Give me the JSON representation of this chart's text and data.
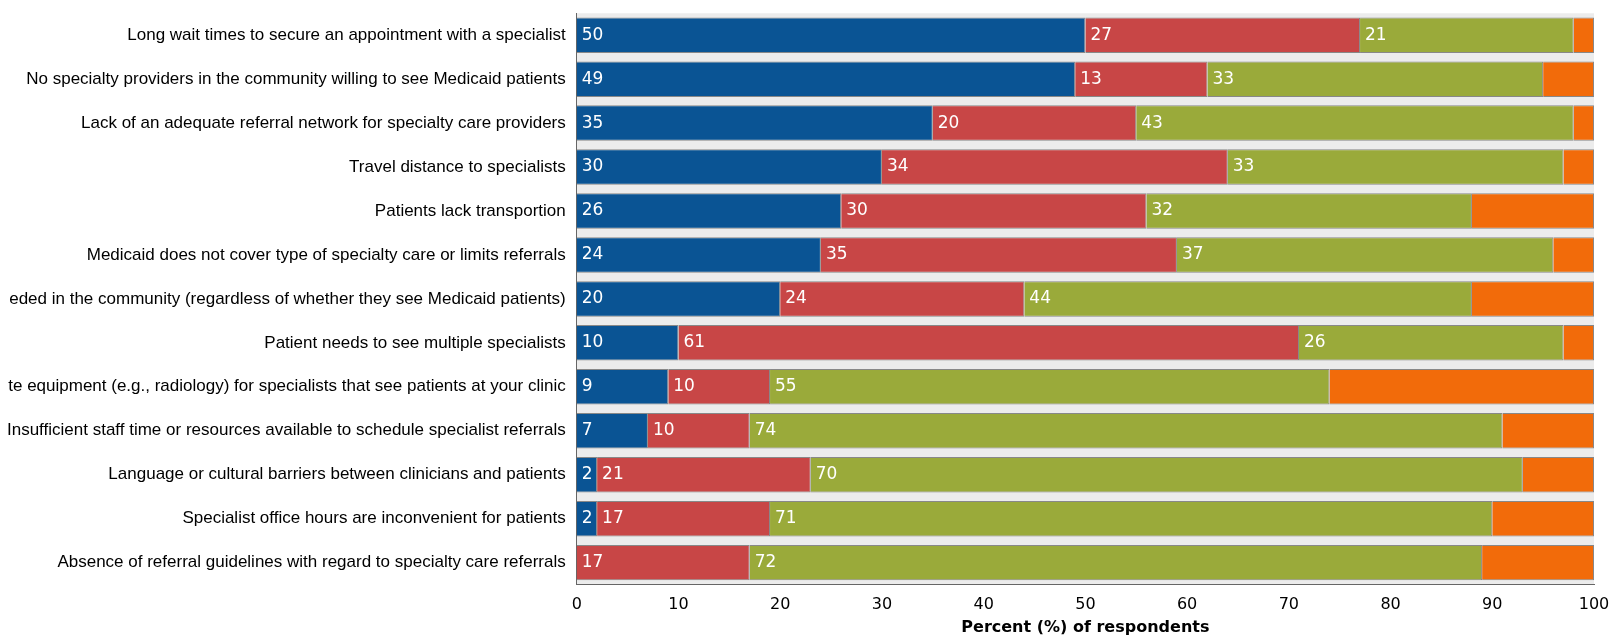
{
  "chart_data": {
    "type": "bar",
    "orientation": "horizontal",
    "stacked": true,
    "xlabel": "Percent (%) of respondents",
    "categories": [
      "Long wait times to secure an appointment with a specialist",
      "No specialty providers in the community willing to see Medicaid patients",
      "Lack of an adequate referral network for specialty care providers",
      "Travel distance to specialists",
      "Patients lack transportion",
      "Medicaid does not cover type of specialty care or limits referrals",
      "eded in the community (regardless of whether they see Medicaid patients)",
      "Patient needs to see multiple specialists",
      "te equipment (e.g., radiology) for specialists that see patients at your clinic",
      "Insufficient staff time or resources available to schedule specialist referrals",
      "Language or cultural barriers between clinicians and patients",
      "Specialist office hours are inconvenient for patients",
      "Absence of referral guidelines with regard to specialty care referrals"
    ],
    "series": [
      {
        "color": "#0a5494",
        "values": [
          50,
          49,
          35,
          30,
          26,
          24,
          20,
          10,
          9,
          7,
          2,
          2,
          0
        ],
        "value_labels": [
          "50",
          "49",
          "35",
          "30",
          "26",
          "24",
          "20",
          "10",
          "9",
          "7",
          "2",
          "2",
          null
        ]
      },
      {
        "color": "#c84646",
        "values": [
          27,
          13,
          20,
          34,
          30,
          35,
          24,
          61,
          10,
          10,
          21,
          17,
          17
        ],
        "value_labels": [
          "27",
          "13",
          "20",
          "34",
          "30",
          "35",
          "24",
          "61",
          "10",
          "10",
          "21",
          "17",
          "17"
        ]
      },
      {
        "color": "#9aaa3a",
        "values": [
          21,
          33,
          43,
          33,
          32,
          37,
          44,
          26,
          55,
          74,
          70,
          71,
          72
        ],
        "value_labels": [
          "21",
          "33",
          "43",
          "33",
          "32",
          "37",
          "44",
          "26",
          "55",
          "74",
          "70",
          "71",
          "72"
        ]
      },
      {
        "color": "#f26b0a",
        "values": [
          2,
          5,
          2,
          3,
          12,
          4,
          12,
          3,
          26,
          9,
          7,
          10,
          11
        ]
      }
    ],
    "xlim": [
      0,
      100
    ],
    "xticks": [
      0,
      10,
      20,
      30,
      40,
      50,
      60,
      70,
      80,
      90,
      100
    ],
    "grid": false,
    "legend": false
  }
}
